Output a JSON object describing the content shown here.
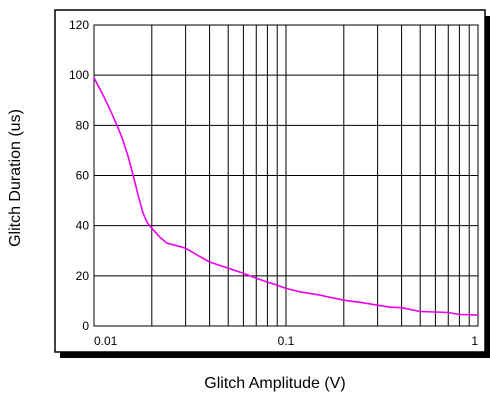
{
  "chart_data": {
    "type": "line",
    "title": "",
    "xlabel": "Glitch Amplitude (V)",
    "ylabel": "Glitch Duration (us)",
    "x_scale": "log",
    "y_scale": "linear",
    "xlim": [
      0.01,
      1
    ],
    "ylim": [
      0,
      120
    ],
    "x_ticks": [
      {
        "value": 0.01,
        "label": "0.01"
      },
      {
        "value": 0.1,
        "label": "0.1"
      },
      {
        "value": 1,
        "label": "1"
      }
    ],
    "y_ticks": [
      {
        "value": 0,
        "label": "0"
      },
      {
        "value": 20,
        "label": "20"
      },
      {
        "value": 40,
        "label": "40"
      },
      {
        "value": 60,
        "label": "60"
      },
      {
        "value": 80,
        "label": "80"
      },
      {
        "value": 100,
        "label": "100"
      },
      {
        "value": 120,
        "label": "120"
      }
    ],
    "grid": true,
    "series": [
      {
        "color": "#ee00ee",
        "points": [
          [
            0.01,
            99
          ],
          [
            0.011,
            93
          ],
          [
            0.012,
            87
          ],
          [
            0.013,
            81
          ],
          [
            0.014,
            75
          ],
          [
            0.015,
            68
          ],
          [
            0.016,
            60
          ],
          [
            0.017,
            52
          ],
          [
            0.018,
            45
          ],
          [
            0.019,
            41
          ],
          [
            0.02,
            39
          ],
          [
            0.022,
            35.5
          ],
          [
            0.024,
            33
          ],
          [
            0.027,
            32
          ],
          [
            0.03,
            31
          ],
          [
            0.035,
            28
          ],
          [
            0.04,
            25.5
          ],
          [
            0.05,
            23
          ],
          [
            0.06,
            21
          ],
          [
            0.07,
            19
          ],
          [
            0.08,
            17.5
          ],
          [
            0.09,
            16.3
          ],
          [
            0.1,
            15
          ],
          [
            0.12,
            13.5
          ],
          [
            0.15,
            12.3
          ],
          [
            0.2,
            10.3
          ],
          [
            0.25,
            9.3
          ],
          [
            0.3,
            8.3
          ],
          [
            0.35,
            7.5
          ],
          [
            0.4,
            7.3
          ],
          [
            0.5,
            5.8
          ],
          [
            0.6,
            5.6
          ],
          [
            0.7,
            5.4
          ],
          [
            0.8,
            4.6
          ],
          [
            0.9,
            4.5
          ],
          [
            1,
            4.3
          ]
        ]
      }
    ]
  }
}
